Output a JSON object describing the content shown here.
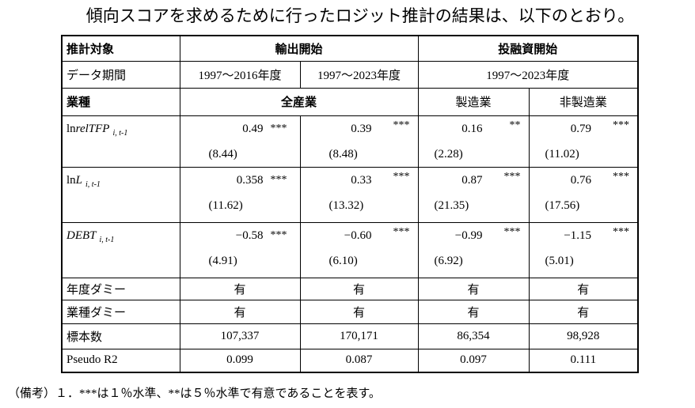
{
  "title": "傾向スコアを求めるために行ったロジット推計の結果は、以下のとおり。",
  "table": {
    "header": {
      "target_label": "推計対象",
      "export": "輸出開始",
      "invest": "投融資開始",
      "period_label": "データ期間",
      "periods": [
        "1997～2016年度",
        "1997～2023年度",
        "1997～2023年度"
      ],
      "industry_label": "業種",
      "all": "全産業",
      "manufacturing": "製造業",
      "non_manufacturing": "非製造業"
    },
    "variables": [
      {
        "prefix": "ln",
        "name": "relTFP",
        "sub": "i, t-1",
        "cells": [
          {
            "coef": "0.49",
            "stars": "***",
            "t": "(8.44)"
          },
          {
            "coef": "0.39",
            "stars": "***",
            "t": "(8.48)"
          },
          {
            "coef": "0.16",
            "stars": "**",
            "t": "(2.28)"
          },
          {
            "coef": "0.79",
            "stars": "***",
            "t": "(11.02)"
          }
        ]
      },
      {
        "prefix": "ln",
        "name": "L",
        "sub": "i, t-1",
        "cells": [
          {
            "coef": "0.358",
            "stars": "***",
            "t": "(11.62)"
          },
          {
            "coef": "0.33",
            "stars": "***",
            "t": "(13.32)"
          },
          {
            "coef": "0.87",
            "stars": "***",
            "t": "(21.35)"
          },
          {
            "coef": "0.76",
            "stars": "***",
            "t": "(17.56)"
          }
        ]
      },
      {
        "name": "DEBT",
        "sub": "i, t-1",
        "cells": [
          {
            "coef": "−0.58",
            "stars": "***",
            "t": "(4.91)"
          },
          {
            "coef": "−0.60",
            "stars": "***",
            "t": "(6.10)"
          },
          {
            "coef": "−0.99",
            "stars": "***",
            "t": "(6.92)"
          },
          {
            "coef": "−1.15",
            "stars": "***",
            "t": "(5.01)"
          }
        ]
      }
    ],
    "rows": [
      {
        "label": "年度ダミー",
        "values": [
          "有",
          "有",
          "有",
          "有"
        ]
      },
      {
        "label": "業種ダミー",
        "values": [
          "有",
          "有",
          "有",
          "有"
        ]
      },
      {
        "label": "標本数",
        "values": [
          "107,337",
          "170,171",
          "86,354",
          "98,928"
        ]
      },
      {
        "label": "Pseudo R2",
        "values": [
          "0.099",
          "0.087",
          "0.097",
          "0.111"
        ]
      }
    ]
  },
  "note": "（備考）１．***は１％水準、**は５％水準で有意であることを表す。"
}
